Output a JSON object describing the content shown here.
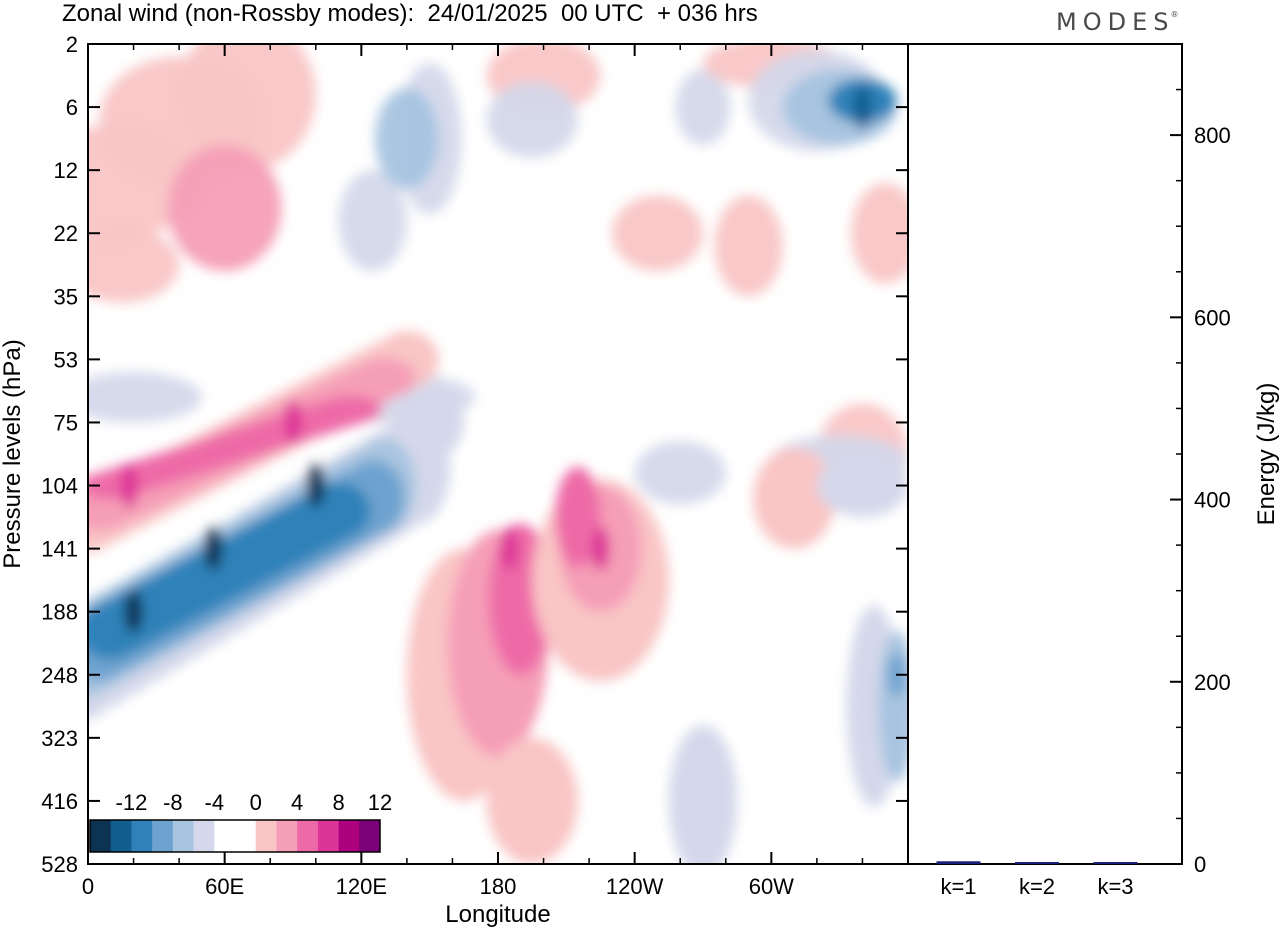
{
  "title": "Zonal wind (non-Rossby modes):  24/01/2025  00 UTC  + 036 hrs",
  "logo": "MODES",
  "logo_mark": "®",
  "chart_data": [
    {
      "type": "heatmap",
      "xlabel": "Longitude",
      "ylabel": "Pressure levels (hPa)",
      "x_ticks": [
        "0",
        "60E",
        "120E",
        "180",
        "120W",
        "60W"
      ],
      "x_tick_values": [
        0,
        60,
        120,
        180,
        240,
        300
      ],
      "xlim": [
        0,
        360
      ],
      "y_ticks": [
        "2",
        "6",
        "12",
        "22",
        "35",
        "53",
        "75",
        "104",
        "141",
        "188",
        "248",
        "323",
        "416",
        "528"
      ],
      "colorbar": {
        "labels": [
          "-12",
          "-8",
          "-4",
          "0",
          "4",
          "8",
          "12"
        ],
        "levels": [
          -14,
          -12,
          -10,
          -8,
          -6,
          -4,
          -2,
          0,
          2,
          4,
          6,
          8,
          10,
          12,
          14
        ],
        "colors": [
          "#0c3352",
          "#115d8e",
          "#2e82b9",
          "#6ea3cf",
          "#a8c4e0",
          "#d4d8ea",
          "#ffffff",
          "#ffffff",
          "#f9c5c5",
          "#f59eb7",
          "#ee6aa7",
          "#dd3497",
          "#ae017e",
          "#7a0177"
        ]
      },
      "features": [
        {
          "kind": "negative",
          "lon": 20,
          "level": "188",
          "peak": -13
        },
        {
          "kind": "negative",
          "lon": 55,
          "level": "141",
          "peak": -14
        },
        {
          "kind": "negative",
          "lon": 100,
          "level": "104",
          "peak": -14
        },
        {
          "kind": "positive",
          "lon": 90,
          "level": "75",
          "peak": 9
        },
        {
          "kind": "positive",
          "lon": 18,
          "level": "104",
          "peak": 8
        },
        {
          "kind": "positive",
          "lon": 185,
          "level": "141",
          "peak": 8
        },
        {
          "kind": "positive",
          "lon": 225,
          "level": "141",
          "peak": 8
        },
        {
          "kind": "negative",
          "lon": 340,
          "level": "6",
          "peak": -11
        },
        {
          "kind": "negative",
          "lon": 355,
          "level": "248",
          "peak": -8
        }
      ]
    },
    {
      "type": "bar",
      "ylabel": "Energy (J/kg)",
      "categories": [
        "k=1",
        "k=2",
        "k=3"
      ],
      "values": [
        3,
        1,
        0.5
      ],
      "ylim": [
        0,
        900
      ],
      "y_ticks": [
        "0",
        "200",
        "400",
        "600",
        "800"
      ],
      "colors": {
        "k=1": "#1a1f7a",
        "k=2": "#1a1f7a",
        "k=3": "#1a1f7a"
      }
    }
  ]
}
